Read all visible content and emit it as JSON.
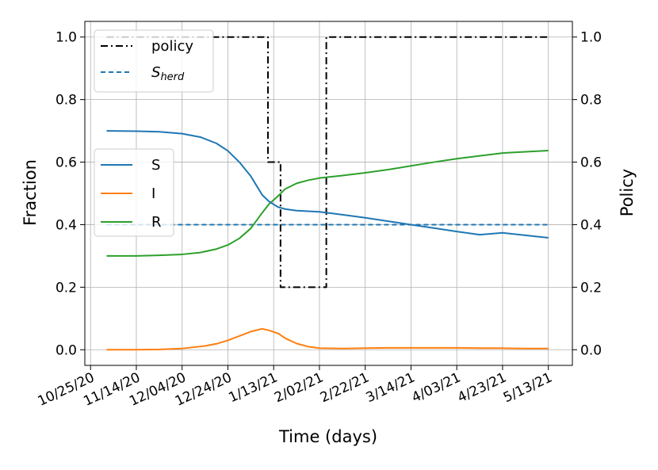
{
  "chart_data": {
    "type": "line",
    "xlabel": "Time (days)",
    "ylabel_left": "Fraction",
    "ylabel_right": "Policy",
    "x_start_date": "10/25/20",
    "x_tick_labels": [
      "10/25/20",
      "11/14/20",
      "12/04/20",
      "12/24/20",
      "1/13/21",
      "2/02/21",
      "2/22/21",
      "3/14/21",
      "4/03/21",
      "4/23/21",
      "5/13/21"
    ],
    "x_tick_days": [
      0,
      20,
      40,
      60,
      80,
      100,
      120,
      140,
      160,
      180,
      200
    ],
    "xlim": [
      -2.5,
      210.5
    ],
    "ylim_left": [
      -0.05,
      1.05
    ],
    "ylim_right": [
      -0.05,
      1.05
    ],
    "y_ticks_left": [
      "0.0",
      "0.2",
      "0.4",
      "0.6",
      "0.8",
      "1.0"
    ],
    "y_ticks_right": [
      "0.0",
      "0.2",
      "0.4",
      "0.6",
      "0.8",
      "1.0"
    ],
    "grid": true,
    "series": [
      {
        "name": "S",
        "axis": "left",
        "color": "#1f77b4",
        "style": "solid",
        "x": [
          7,
          20,
          30,
          40,
          48,
          55,
          60,
          65,
          70,
          75,
          78,
          82,
          85,
          90,
          95,
          100,
          110,
          120,
          130,
          140,
          150,
          160,
          170,
          180,
          190,
          200
        ],
        "y": [
          0.7,
          0.699,
          0.697,
          0.691,
          0.68,
          0.66,
          0.636,
          0.6,
          0.555,
          0.495,
          0.474,
          0.456,
          0.45,
          0.445,
          0.443,
          0.441,
          0.432,
          0.422,
          0.411,
          0.4,
          0.389,
          0.378,
          0.368,
          0.374,
          0.366,
          0.358
        ]
      },
      {
        "name": "I",
        "axis": "left",
        "color": "#ff7f0e",
        "style": "solid",
        "x": [
          7,
          20,
          30,
          40,
          50,
          55,
          60,
          65,
          70,
          75,
          78,
          82,
          85,
          90,
          95,
          100,
          110,
          120,
          130,
          140,
          150,
          160,
          170,
          180,
          190,
          200
        ],
        "y": [
          0.0,
          0.0,
          0.001,
          0.004,
          0.012,
          0.019,
          0.03,
          0.044,
          0.058,
          0.067,
          0.062,
          0.052,
          0.037,
          0.02,
          0.01,
          0.005,
          0.004,
          0.005,
          0.006,
          0.006,
          0.006,
          0.006,
          0.005,
          0.005,
          0.004,
          0.004
        ]
      },
      {
        "name": "R",
        "axis": "left",
        "color": "#2ca02c",
        "style": "solid",
        "x": [
          7,
          20,
          30,
          40,
          48,
          55,
          60,
          65,
          70,
          75,
          78,
          82,
          85,
          90,
          95,
          100,
          110,
          120,
          130,
          140,
          150,
          160,
          170,
          180,
          190,
          200
        ],
        "y": [
          0.3,
          0.3,
          0.302,
          0.305,
          0.311,
          0.322,
          0.335,
          0.356,
          0.388,
          0.438,
          0.466,
          0.492,
          0.514,
          0.532,
          0.542,
          0.549,
          0.557,
          0.566,
          0.576,
          0.588,
          0.6,
          0.611,
          0.62,
          0.629,
          0.633,
          0.637
        ]
      },
      {
        "name": "policy",
        "axis": "right",
        "color": "#000000",
        "style": "dashdot",
        "step": true,
        "x": [
          7,
          77.5,
          77.5,
          83,
          83,
          103,
          103,
          200
        ],
        "y": [
          1.0,
          1.0,
          0.6,
          0.6,
          0.2,
          0.2,
          1.0,
          1.0
        ]
      },
      {
        "name": "S_herd",
        "axis": "left",
        "color": "#1f77b4",
        "style": "dashed",
        "x": [
          7,
          200
        ],
        "y": [
          0.4,
          0.4
        ]
      }
    ],
    "legends": [
      {
        "position": "upper-left",
        "entries": [
          {
            "series": "policy",
            "label": "policy",
            "label_main": "",
            "label_sub": ""
          },
          {
            "series": "S_herd",
            "label": "",
            "label_main": "S",
            "label_sub": "herd"
          }
        ]
      },
      {
        "position": "center-left",
        "entries": [
          {
            "series": "S",
            "label": "S"
          },
          {
            "series": "I",
            "label": "I"
          },
          {
            "series": "R",
            "label": "R"
          }
        ]
      }
    ]
  }
}
